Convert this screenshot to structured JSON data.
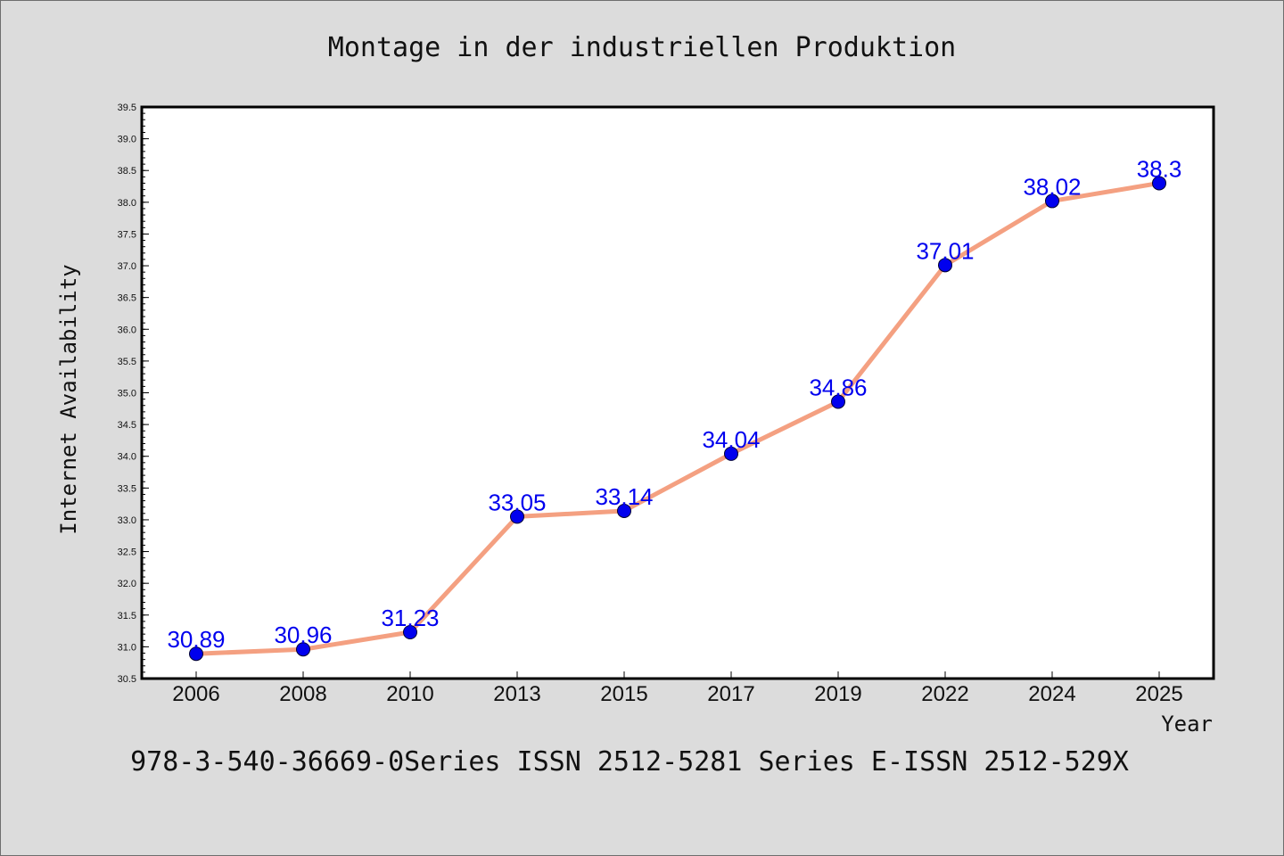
{
  "chart_data": {
    "type": "line",
    "title": "Montage in der industriellen Produktion",
    "xlabel": "Year",
    "ylabel": "Internet Availability",
    "categories": [
      "2006",
      "2008",
      "2010",
      "2013",
      "2015",
      "2017",
      "2019",
      "2022",
      "2024",
      "2025"
    ],
    "series": [
      {
        "values": [
          30.89,
          30.96,
          31.23,
          33.05,
          33.14,
          34.04,
          34.86,
          37.01,
          38.02,
          38.3
        ],
        "labels": [
          "30.89",
          "30.96",
          "31.23",
          "33.05",
          "33.14",
          "34.04",
          "34.86",
          "37.01",
          "38.02",
          "38.3"
        ],
        "line_color": "#f4a081",
        "marker_color": "#0000ee"
      }
    ],
    "ylim": [
      30.5,
      39.5
    ],
    "yticks": [
      "30.5",
      "31.0",
      "31.5",
      "32.0",
      "32.5",
      "33.0",
      "33.5",
      "34.0",
      "34.5",
      "35.0",
      "35.5",
      "36.0",
      "36.5",
      "37.0",
      "37.5",
      "38.0",
      "38.5",
      "39.0",
      "39.5"
    ],
    "grid": false,
    "legend": "none"
  },
  "footer_text": "978-3-540-36669-0Series ISSN 2512-5281 Series E-ISSN 2512-529X",
  "colors": {
    "background": "#dcdcdc",
    "plot_background": "#ffffff",
    "axis": "#000000"
  }
}
